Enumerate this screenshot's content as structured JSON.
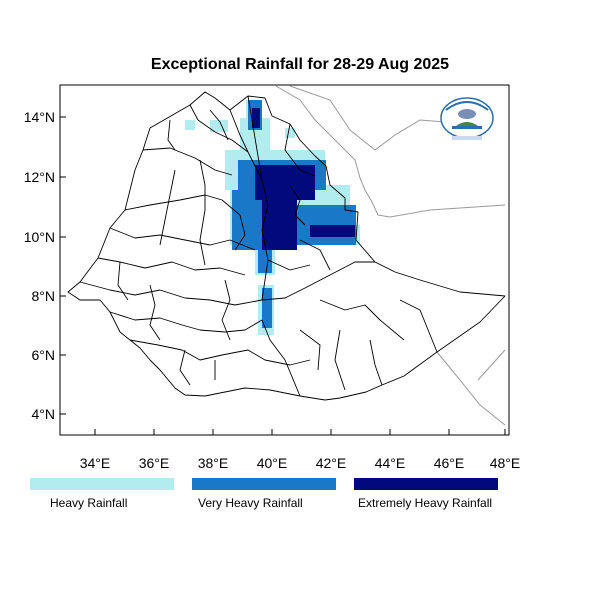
{
  "title": "Exceptional Rainfall for 28-29 Aug 2025",
  "axes": {
    "x_ticks": [
      "34°E",
      "36°E",
      "38°E",
      "40°E",
      "42°E",
      "44°E",
      "46°E",
      "48°E"
    ],
    "y_ticks": [
      "14°N",
      "12°N",
      "10°N",
      "8°N",
      "6°N",
      "4°N"
    ]
  },
  "legend": [
    {
      "label": "Heavy Rainfall",
      "color": "#b3ecef"
    },
    {
      "label": "Very Heavy Rainfall",
      "color": "#1a78c9"
    },
    {
      "label": "Extremely Heavy Rainfall",
      "color": "#000a7a"
    }
  ],
  "colors": {
    "heavy": "#b3ecef",
    "very_heavy": "#1a78c9",
    "extremely_heavy": "#000a7a",
    "border": "#000000",
    "neighbor_border": "#9a9a9a"
  },
  "logo": {
    "icon": "meteorology-agency-logo"
  }
}
